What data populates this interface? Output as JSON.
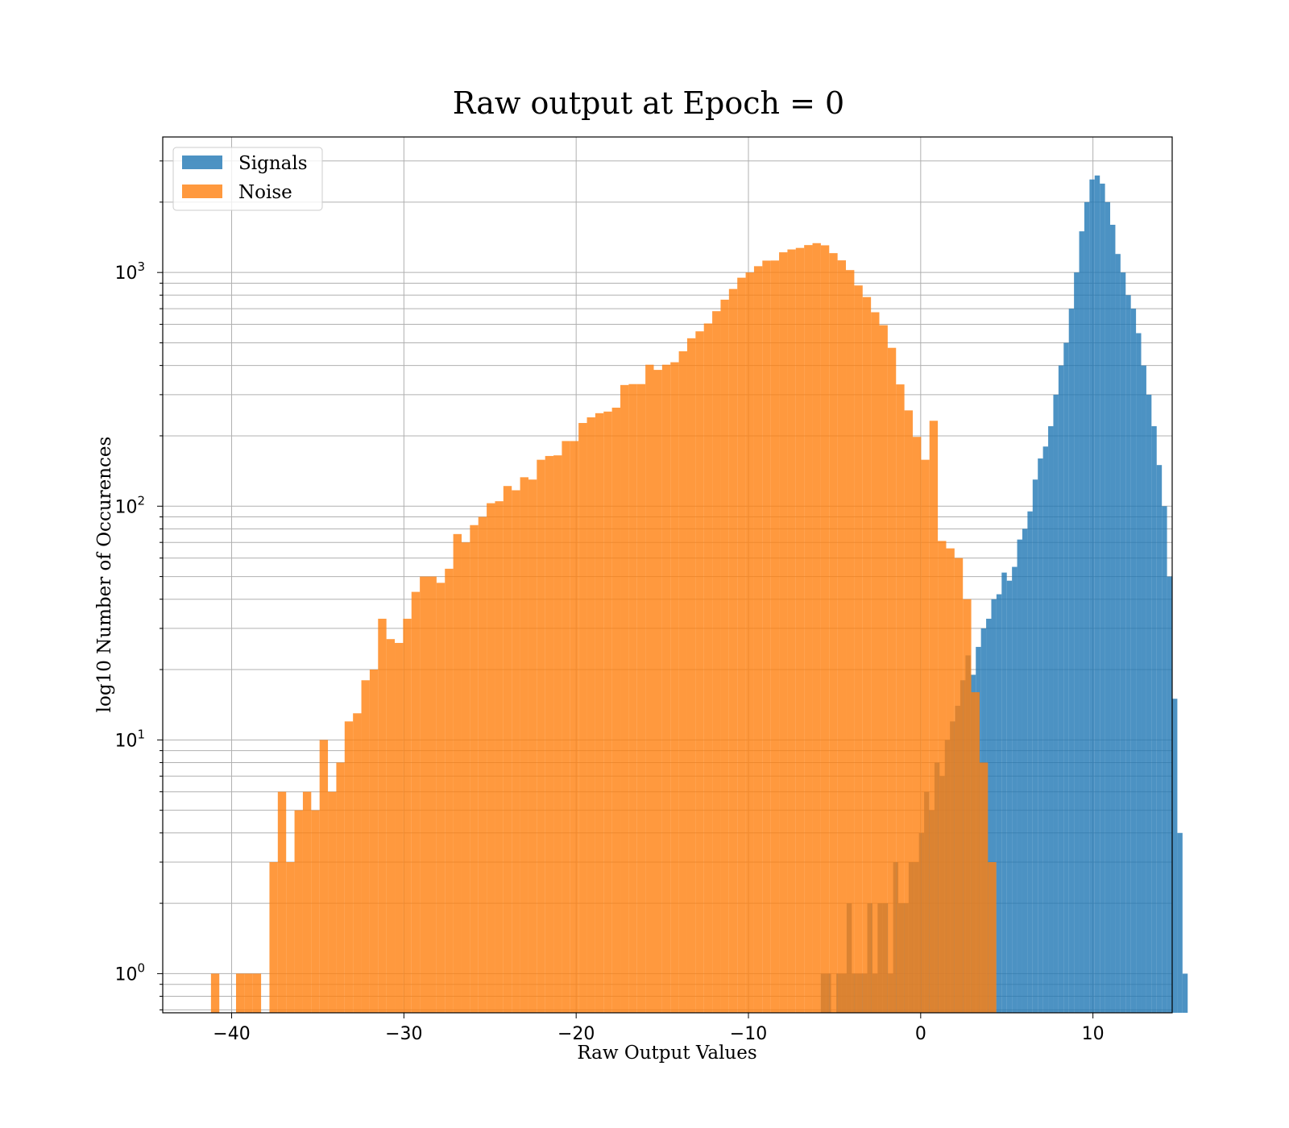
{
  "chart_data": {
    "type": "bar",
    "title": "Raw output at Epoch = 0",
    "xlabel": "Raw Output Values",
    "ylabel": "log10 Number of Occurences",
    "xlim": [
      -44.0,
      14.6
    ],
    "ylim": [
      0.68,
      3800
    ],
    "yscale": "log",
    "grid": true,
    "legend_position": "top-left",
    "x_ticks": [
      -40,
      -30,
      -20,
      -10,
      0,
      10
    ],
    "x_tick_labels": [
      "−40",
      "−30",
      "−20",
      "−10",
      "0",
      "10"
    ],
    "y_ticks": [
      1,
      10,
      100,
      1000
    ],
    "y_tick_labels": [
      {
        "base": "10",
        "exp": "0"
      },
      {
        "base": "10",
        "exp": "1"
      },
      {
        "base": "10",
        "exp": "2"
      },
      {
        "base": "10",
        "exp": "3"
      }
    ],
    "series": [
      {
        "name": "Signals",
        "color": "#1f77b4",
        "opacity": 0.8,
        "bin_start": -5.8,
        "bin_width": 0.3,
        "values": [
          1,
          1,
          0,
          1,
          1,
          2,
          1,
          1,
          1,
          2,
          1,
          2,
          2,
          1,
          3,
          2,
          2,
          3,
          3,
          4,
          6,
          5,
          8,
          7,
          10,
          12,
          14,
          18,
          23,
          19,
          25,
          30,
          33,
          40,
          42,
          52,
          48,
          55,
          72,
          80,
          95,
          130,
          160,
          180,
          220,
          300,
          400,
          500,
          700,
          1000,
          1500,
          2000,
          2500,
          2600,
          2400,
          2000,
          1600,
          1200,
          1000,
          800,
          700,
          550,
          400,
          300,
          220,
          150,
          100,
          50,
          15,
          4,
          1
        ]
      },
      {
        "name": "Noise",
        "color": "#ff7f0e",
        "opacity": 0.8,
        "bin_start": -41.2,
        "bin_width": 0.485,
        "values": [
          1,
          0,
          0,
          1,
          1,
          1,
          0,
          3,
          6,
          3,
          5,
          6,
          5,
          10,
          6,
          8,
          12,
          13,
          18,
          20,
          33,
          27,
          26,
          33,
          43,
          50,
          50,
          47,
          54,
          76,
          70,
          83,
          90,
          103,
          105,
          122,
          117,
          133,
          130,
          158,
          164,
          165,
          190,
          190,
          227,
          240,
          250,
          254,
          264,
          330,
          333,
          333,
          403,
          383,
          403,
          413,
          460,
          523,
          560,
          605,
          683,
          765,
          850,
          950,
          1000,
          1064,
          1124,
          1125,
          1220,
          1255,
          1274,
          1310,
          1335,
          1307,
          1210,
          1127,
          1024,
          880,
          785,
          676,
          595,
          476,
          332,
          257,
          198,
          158,
          232,
          71,
          66,
          60,
          40,
          16,
          8,
          3
        ]
      }
    ]
  }
}
